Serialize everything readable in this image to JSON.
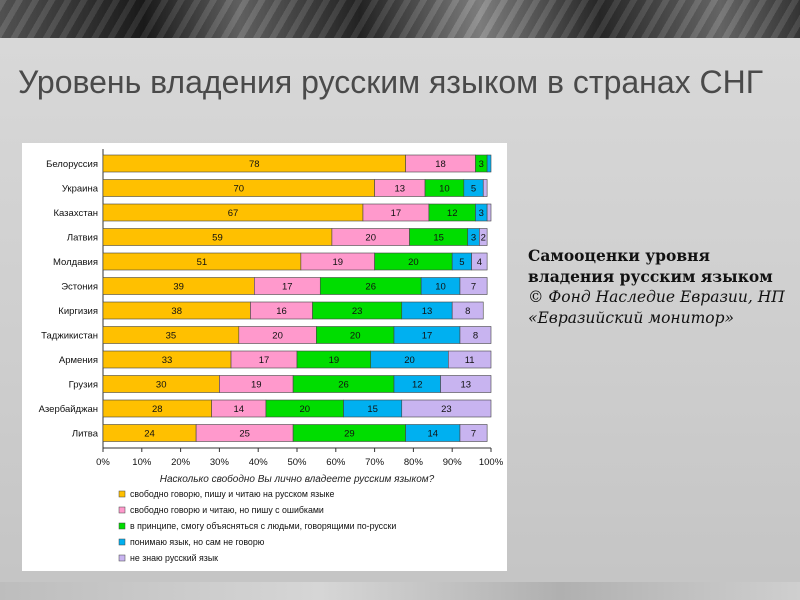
{
  "slide": {
    "title": "Уровень владения русским языком в странах СНГ",
    "note_bold": "Самооценки уровня владения русским языком",
    "note_italic": "© Фонд Наследие Евразии, НП «Евразийский монитор»"
  },
  "colors": {
    "yellow": "#ffc000",
    "pink": "#ff99cc",
    "green": "#00dd00",
    "cyan": "#00b0f0",
    "lavender": "#c8b4f0"
  },
  "chart_data": {
    "type": "bar",
    "orientation": "horizontal",
    "stacked": true,
    "categories": [
      "Белоруссия",
      "Украина",
      "Казахстан",
      "Латвия",
      "Молдавия",
      "Эстония",
      "Киргизия",
      "Таджикистан",
      "Армения",
      "Грузия",
      "Азербайджан",
      "Литва"
    ],
    "series": [
      {
        "name": "свободно говорю, пишу и читаю на русском языке",
        "color": "#ffc000",
        "values": [
          78,
          70,
          67,
          59,
          51,
          39,
          38,
          35,
          33,
          30,
          28,
          24
        ]
      },
      {
        "name": "свободно говорю и читаю, но пишу с ошибками",
        "color": "#ff99cc",
        "values": [
          18,
          13,
          17,
          20,
          19,
          17,
          16,
          20,
          17,
          19,
          14,
          25
        ]
      },
      {
        "name": "в принципе, смогу объясняться с людьми, говорящими по-русски",
        "color": "#00dd00",
        "values": [
          3,
          10,
          12,
          15,
          20,
          26,
          23,
          20,
          19,
          26,
          20,
          29
        ]
      },
      {
        "name": "понимаю язык, но сам не говорю",
        "color": "#00b0f0",
        "values": [
          1,
          5,
          3,
          3,
          5,
          10,
          13,
          17,
          20,
          12,
          15,
          14
        ]
      },
      {
        "name": "не знаю русский язык",
        "color": "#c8b4f0",
        "values": [
          0,
          1,
          1,
          2,
          4,
          7,
          8,
          8,
          11,
          13,
          23,
          7
        ]
      }
    ],
    "labels": [
      [
        "78",
        "18",
        "3",
        "",
        ""
      ],
      [
        "70",
        "13",
        "10",
        "5",
        ""
      ],
      [
        "67",
        "17",
        "12",
        "3",
        ""
      ],
      [
        "59",
        "20",
        "15",
        "3",
        "2"
      ],
      [
        "51",
        "19",
        "20",
        "5",
        "4"
      ],
      [
        "39",
        "17",
        "26",
        "10",
        "7"
      ],
      [
        "38",
        "16",
        "23",
        "13",
        "8"
      ],
      [
        "35",
        "20",
        "20",
        "17",
        "8"
      ],
      [
        "33",
        "17",
        "19",
        "20",
        "11"
      ],
      [
        "30",
        "19",
        "26",
        "12",
        "13"
      ],
      [
        "28",
        "14",
        "20",
        "15",
        "23"
      ],
      [
        "24",
        "25",
        "29",
        "14",
        "7"
      ]
    ],
    "x_ticks": [
      "0%",
      "10%",
      "20%",
      "30%",
      "40%",
      "50%",
      "60%",
      "70%",
      "80%",
      "90%",
      "100%"
    ],
    "xlim": [
      0,
      100
    ],
    "xlabel": "Насколько свободно Вы лично владеете русским языком?",
    "legend_position": "bottom",
    "grid": false
  }
}
